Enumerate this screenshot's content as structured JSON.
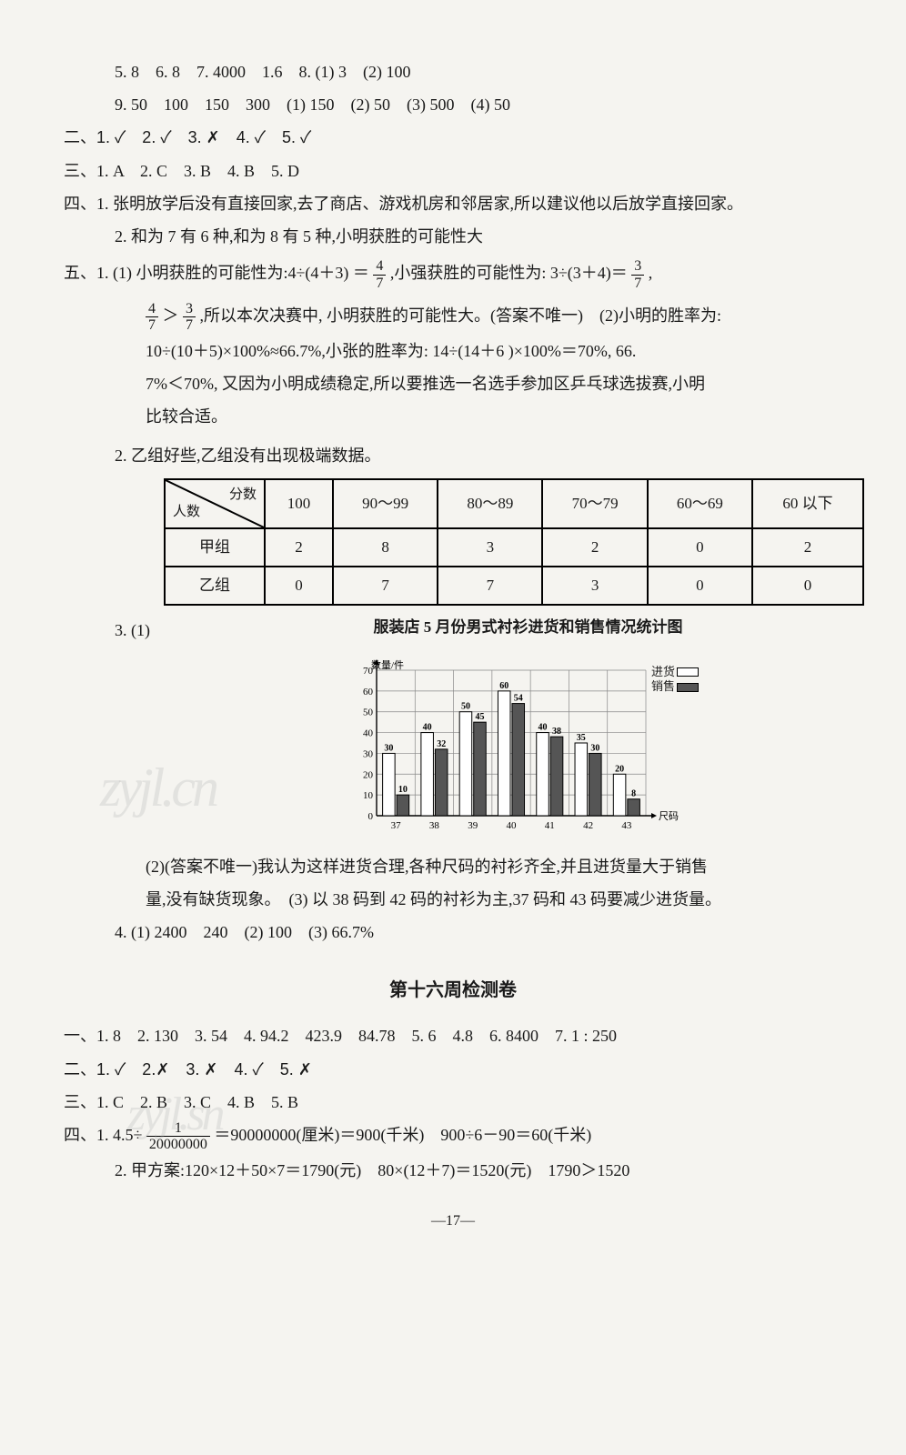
{
  "indent_lines": {
    "l5": "5. 8　6. 8　7. 4000　1.6　8. (1) 3　(2) 100",
    "l9": "9. 50　100　150　300　(1) 150　(2) 50　(3) 500　(4) 50"
  },
  "section2": "二、1. ✓　2. ✓　3. ✗　4. ✓　5. ✓",
  "section3": "三、1. A　2. C　3. B　4. B　5. D",
  "section4": {
    "item1": "四、1. 张明放学后没有直接回家,去了商店、游戏机房和邻居家,所以建议他以后放学直接回家。",
    "item2": "2. 和为 7 有 6 种,和为 8 有 5 种,小明获胜的可能性大"
  },
  "section5": {
    "item1a": "五、1. (1) 小明获胜的可能性为:4÷(4＋3) ＝ ",
    "item1b": ",小强获胜的可能性为: 3÷(3＋4)＝",
    "item1c": ",",
    "frac47": {
      "n": "4",
      "d": "7"
    },
    "frac37": {
      "n": "3",
      "d": "7"
    },
    "item1line2a": "＞",
    "item1line2b": ",所以本次决赛中, 小明获胜的可能性大。(答案不唯一)　(2)小明的胜率为:",
    "item1line3": "10÷(10＋5)×100%≈66.7%,小张的胜率为: 14÷(14＋6 )×100%＝70%, 66.",
    "item1line4": "7%＜70%, 又因为小明成绩稳定,所以要推选一名选手参加区乒乓球选拔赛,小明",
    "item1line5": "比较合适。",
    "item2": "2. 乙组好些,乙组没有出现极端数据。"
  },
  "table": {
    "diag_top": "分数",
    "diag_bottom": "人数",
    "columns": [
      "100",
      "90～99",
      "80～89",
      "70～79",
      "60～69",
      "60 以下"
    ],
    "rows": [
      {
        "label": "甲组",
        "data": [
          "2",
          "8",
          "3",
          "2",
          "0",
          "2"
        ]
      },
      {
        "label": "乙组",
        "data": [
          "0",
          "7",
          "7",
          "3",
          "0",
          "0"
        ]
      }
    ]
  },
  "section5_3_prefix": "3. (1)",
  "chart": {
    "title": "服装店 5 月份男式衬衫进货和销售情况统计图",
    "legend": {
      "jinhuo": "进货",
      "xiaoshou": "销售"
    },
    "y_label": "数量/件",
    "x_label": "尺码",
    "y_max": 70,
    "y_step": 10,
    "categories": [
      "37",
      "38",
      "39",
      "40",
      "41",
      "42",
      "43"
    ],
    "series": [
      {
        "name": "进货",
        "color": "#ffffff",
        "values": [
          30,
          40,
          50,
          60,
          40,
          35,
          20
        ]
      },
      {
        "name": "销售",
        "color": "#555555",
        "values": [
          10,
          32,
          45,
          54,
          38,
          30,
          8
        ]
      }
    ],
    "bg": "#f5f4f0",
    "grid": "#888888",
    "bar_stroke": "#000"
  },
  "section5_3_text": {
    "line2": "(2)(答案不唯一)我认为这样进货合理,各种尺码的衬衫齐全,并且进货量大于销售",
    "line3": "量,没有缺货现象。　(3) 以 38 码到 42 码的衬衫为主,37 码和 43 码要减少进货量。"
  },
  "section5_4": "4. (1) 2400　240　(2) 100　(3) 66.7%",
  "heading": "第十六周检测卷",
  "week16": {
    "s1": "一、1. 8　2. 130　3. 54　4. 94.2　423.9　84.78　5. 6　4.8　6. 8400　7. 1 : 250",
    "s2": "二、1. ✓　2.✗　3. ✗　4. ✓　5. ✗",
    "s3": "三、1. C　2. B　3. C　4. B　5. B",
    "s4_1a": "四、1. 4.5÷",
    "s4_1_frac": {
      "n": "1",
      "d": "20000000"
    },
    "s4_1b": "＝90000000(厘米)＝900(千米)　900÷6－90＝60(千米)",
    "s4_2": "2. 甲方案:120×12＋50×7＝1790(元)　80×(12＋7)＝1520(元)　1790＞1520"
  },
  "page_number": "—17—",
  "watermarks": {
    "wm1": "zyjl.cn",
    "wm2": "zyjl.sn"
  }
}
